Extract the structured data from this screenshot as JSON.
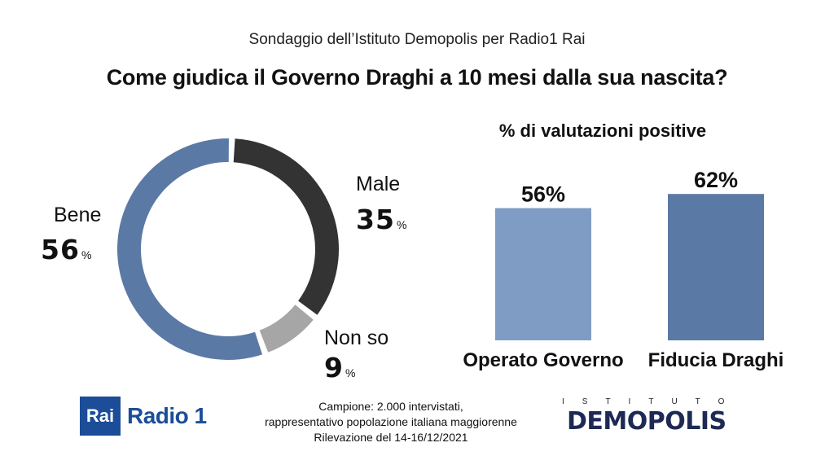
{
  "header": {
    "subtitle": "Sondaggio dell’Istituto Demopolis per Radio1 Rai",
    "title": "Come giudica il Governo Draghi a 10 mesi dalla sua nascita?"
  },
  "donut": {
    "slices": [
      {
        "label": "Bene",
        "value": "56",
        "unit": "%"
      },
      {
        "label": "Male",
        "value": "35",
        "unit": "%"
      },
      {
        "label": "Non so",
        "value": "9",
        "unit": "%"
      }
    ]
  },
  "bars": {
    "title": "% di valutazioni positive"
  },
  "chart_data": [
    {
      "type": "pie",
      "style": "donut",
      "categories": [
        "Bene",
        "Male",
        "Non so"
      ],
      "values": [
        56,
        35,
        9
      ],
      "colors": [
        "#5b79a5",
        "#333333",
        "#a6a6a6"
      ]
    },
    {
      "type": "bar",
      "title": "% di valutazioni positive",
      "categories": [
        "Operato Governo",
        "Fiducia Draghi"
      ],
      "values": [
        56,
        62
      ],
      "value_labels": [
        "56%",
        "62%"
      ],
      "colors": [
        "#7f9cc4",
        "#5b79a5"
      ],
      "ylim": [
        0,
        100
      ]
    }
  ],
  "footer": {
    "line1": "Campione: 2.000 intervistati,",
    "line2": "rappresentativo popolazione italiana maggiorenne",
    "line3": "Rilevazione del 14-16/12/2021"
  },
  "logos": {
    "rai_box": "Rai",
    "rai_text": "Radio 1",
    "demopolis_small": "ISTITUTO",
    "demopolis_big": "DEMOPOLIS"
  }
}
